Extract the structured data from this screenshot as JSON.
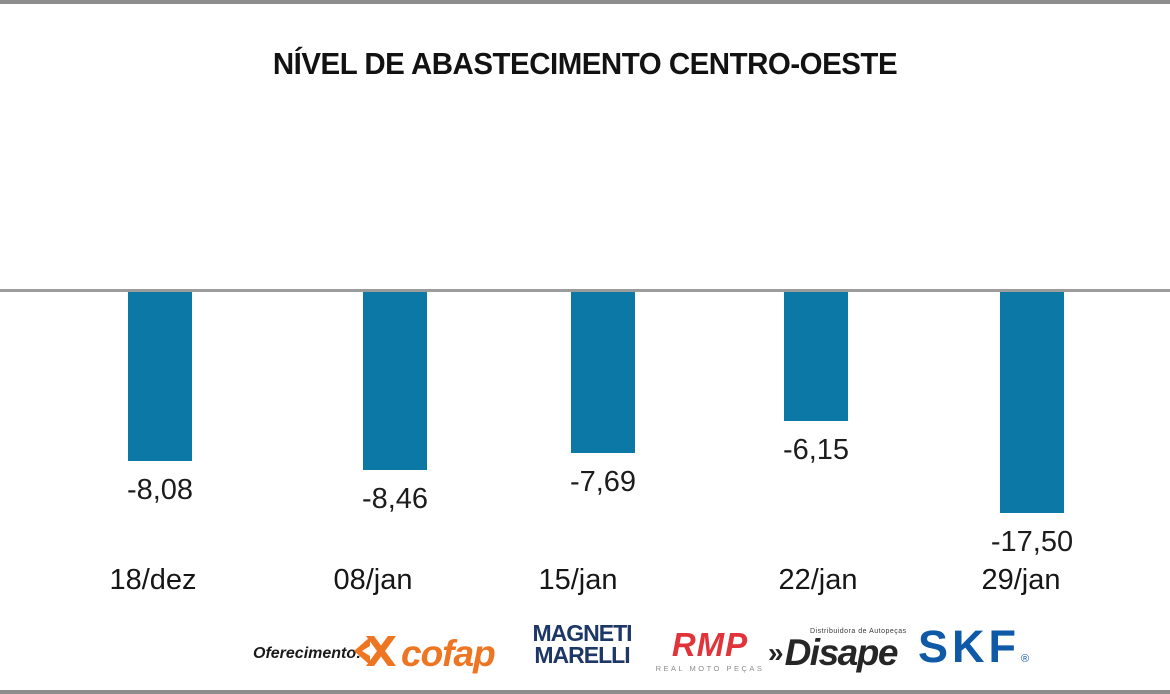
{
  "chart_data": {
    "type": "bar",
    "title": "NÍVEL DE ABASTECIMENTO CENTRO-OESTE",
    "categories": [
      "18/dez",
      "08/jan",
      "15/jan",
      "22/jan",
      "29/jan"
    ],
    "values": [
      -8.08,
      -8.46,
      -7.69,
      -6.15,
      -17.5
    ],
    "value_labels": [
      "-8,08",
      "-8,46",
      "-7,69",
      "-6,15",
      "-17,50"
    ],
    "xlabel": "",
    "ylabel": "",
    "ylim": [
      -10.6,
      0
    ],
    "grid": false,
    "legend_position": "none",
    "value_label_position": "below-bar",
    "decimal_separator": ",",
    "bar_color": "#0b78a6",
    "baseline_color": "#9c9c9c"
  },
  "footer": {
    "sponsor_label": "Oferecimento:",
    "sponsors": {
      "cofap": {
        "name": "Cofap",
        "text": "cofap",
        "color": "#ee7623"
      },
      "magneti_marelli": {
        "name": "Magneti Marelli",
        "line1": "MAGNETI",
        "line2": "MARELLI",
        "color": "#1d3766"
      },
      "rmp": {
        "name": "RMP",
        "text": "RMP",
        "subtext": "REAL MOTO PEÇAS",
        "color": "#e1333a"
      },
      "disape": {
        "name": "Disape",
        "prefix": "»",
        "text": "Disape",
        "subtext": "Distribuidora de Autopeças",
        "color": "#262626"
      },
      "skf": {
        "name": "SKF",
        "text": "SKF",
        "registered": "®",
        "color": "#0e5aa7"
      }
    }
  },
  "page": {
    "background": "#ffffff",
    "edge_rule_color": "#8d8d8d"
  }
}
